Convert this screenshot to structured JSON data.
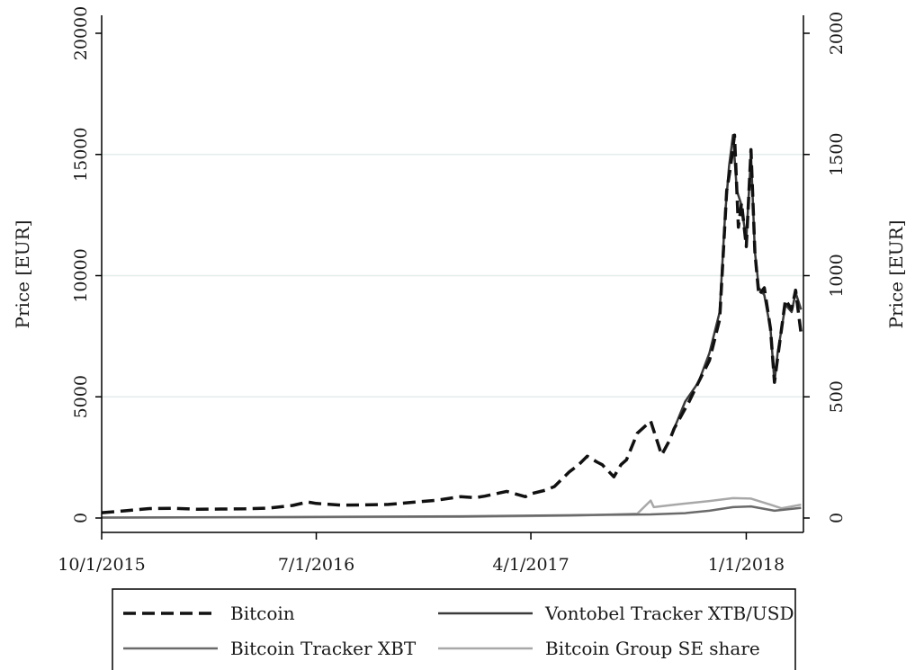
{
  "chart_data": {
    "type": "line",
    "title": "",
    "xlabel": "",
    "ylabel": "Price [EUR]",
    "ylabel_right": "Price [EUR]",
    "ylim": [
      0,
      20000
    ],
    "ylim_right": [
      0,
      2000
    ],
    "x_ticks": [
      "10/1/2015",
      "7/1/2016",
      "4/1/2017",
      "1/1/2018"
    ],
    "y_ticks": [
      0,
      5000,
      10000,
      15000,
      20000
    ],
    "y_ticks_right": [
      0,
      500,
      1000,
      1500,
      2000
    ],
    "grid": "horizontal",
    "legend_position": "bottom",
    "x_range": [
      "2015-10-01",
      "2018-03-15"
    ],
    "series": [
      {
        "name": "Bitcoin",
        "axis": "left",
        "style": "dashed",
        "color": "#111111",
        "points": [
          [
            "2015-10-01",
            220
          ],
          [
            "2015-11-01",
            300
          ],
          [
            "2015-12-01",
            390
          ],
          [
            "2016-01-01",
            400
          ],
          [
            "2016-02-01",
            360
          ],
          [
            "2016-03-01",
            370
          ],
          [
            "2016-04-01",
            380
          ],
          [
            "2016-05-01",
            410
          ],
          [
            "2016-06-01",
            520
          ],
          [
            "2016-06-20",
            660
          ],
          [
            "2016-07-01",
            600
          ],
          [
            "2016-08-01",
            530
          ],
          [
            "2016-09-01",
            540
          ],
          [
            "2016-10-01",
            560
          ],
          [
            "2016-11-01",
            650
          ],
          [
            "2016-12-01",
            730
          ],
          [
            "2017-01-01",
            880
          ],
          [
            "2017-01-20",
            840
          ],
          [
            "2017-02-01",
            900
          ],
          [
            "2017-03-01",
            1100
          ],
          [
            "2017-03-25",
            880
          ],
          [
            "2017-04-01",
            1000
          ],
          [
            "2017-04-20",
            1150
          ],
          [
            "2017-05-01",
            1300
          ],
          [
            "2017-05-20",
            1900
          ],
          [
            "2017-06-01",
            2200
          ],
          [
            "2017-06-12",
            2550
          ],
          [
            "2017-06-25",
            2300
          ],
          [
            "2017-07-01",
            2200
          ],
          [
            "2017-07-16",
            1700
          ],
          [
            "2017-07-25",
            2200
          ],
          [
            "2017-08-01",
            2400
          ],
          [
            "2017-08-15",
            3500
          ],
          [
            "2017-09-01",
            4000
          ],
          [
            "2017-09-15",
            2600
          ],
          [
            "2017-09-25",
            3200
          ],
          [
            "2017-10-01",
            3700
          ],
          [
            "2017-10-20",
            4800
          ],
          [
            "2017-11-01",
            5600
          ],
          [
            "2017-11-15",
            6500
          ],
          [
            "2017-11-28",
            8200
          ],
          [
            "2017-12-07",
            13500
          ],
          [
            "2017-12-12",
            14500
          ],
          [
            "2017-12-17",
            15800
          ],
          [
            "2017-12-22",
            12000
          ],
          [
            "2017-12-26",
            13000
          ],
          [
            "2018-01-01",
            11200
          ],
          [
            "2018-01-07",
            15200
          ],
          [
            "2018-01-12",
            11000
          ],
          [
            "2018-01-17",
            9200
          ],
          [
            "2018-01-24",
            9500
          ],
          [
            "2018-02-01",
            7800
          ],
          [
            "2018-02-06",
            5600
          ],
          [
            "2018-02-10",
            6600
          ],
          [
            "2018-02-20",
            9000
          ],
          [
            "2018-02-28",
            8600
          ],
          [
            "2018-03-05",
            9400
          ],
          [
            "2018-03-12",
            7600
          ]
        ]
      },
      {
        "name": "Vontobel Tracker XTB/USD",
        "axis": "right",
        "style": "solid",
        "color": "#3a3a3a",
        "points": [
          [
            "2017-10-01",
            370
          ],
          [
            "2017-10-15",
            480
          ],
          [
            "2017-11-01",
            560
          ],
          [
            "2017-11-15",
            680
          ],
          [
            "2017-11-28",
            850
          ],
          [
            "2017-12-05",
            1250
          ],
          [
            "2017-12-10",
            1450
          ],
          [
            "2017-12-15",
            1580
          ],
          [
            "2017-12-20",
            1350
          ],
          [
            "2017-12-25",
            1300
          ],
          [
            "2018-01-01",
            1150
          ],
          [
            "2018-01-07",
            1500
          ],
          [
            "2018-01-12",
            1100
          ],
          [
            "2018-01-17",
            950
          ],
          [
            "2018-01-24",
            920
          ],
          [
            "2018-02-01",
            780
          ],
          [
            "2018-02-06",
            560
          ],
          [
            "2018-02-10",
            680
          ],
          [
            "2018-02-20",
            880
          ],
          [
            "2018-02-28",
            850
          ],
          [
            "2018-03-05",
            930
          ],
          [
            "2018-03-12",
            860
          ]
        ]
      },
      {
        "name": "Bitcoin Tracker XBT",
        "axis": "right",
        "style": "solid",
        "color": "#6a6a6a",
        "points": [
          [
            "2015-10-01",
            2
          ],
          [
            "2016-06-01",
            4
          ],
          [
            "2017-01-01",
            7
          ],
          [
            "2017-06-01",
            12
          ],
          [
            "2017-09-01",
            15
          ],
          [
            "2017-10-15",
            20
          ],
          [
            "2017-11-15",
            30
          ],
          [
            "2017-12-15",
            45
          ],
          [
            "2018-01-07",
            48
          ],
          [
            "2018-02-06",
            30
          ],
          [
            "2018-03-12",
            42
          ]
        ]
      },
      {
        "name": "Bitcoin Group SE share",
        "axis": "right",
        "style": "solid",
        "color": "#a8a8a8",
        "points": [
          [
            "2015-10-01",
            2
          ],
          [
            "2016-06-01",
            3
          ],
          [
            "2017-01-01",
            5
          ],
          [
            "2017-06-01",
            10
          ],
          [
            "2017-08-15",
            18
          ],
          [
            "2017-09-01",
            72
          ],
          [
            "2017-09-05",
            45
          ],
          [
            "2017-10-01",
            55
          ],
          [
            "2017-11-15",
            70
          ],
          [
            "2017-12-15",
            82
          ],
          [
            "2018-01-07",
            80
          ],
          [
            "2018-02-01",
            55
          ],
          [
            "2018-02-15",
            40
          ],
          [
            "2018-03-12",
            55
          ]
        ]
      }
    ]
  }
}
